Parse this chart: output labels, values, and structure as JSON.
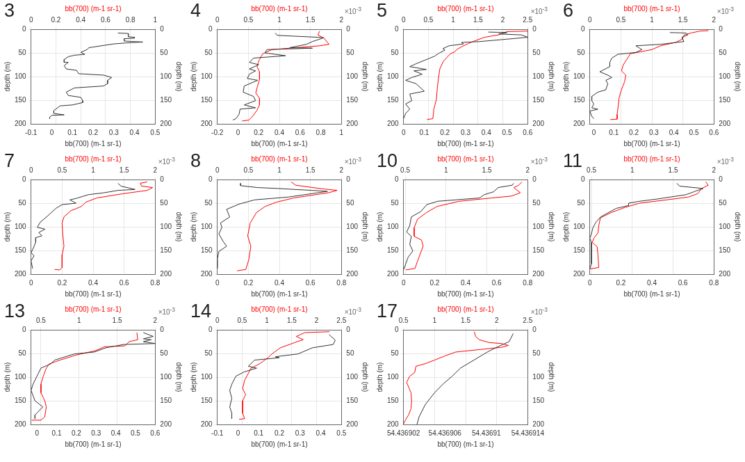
{
  "chart_data": [
    {
      "type": "line",
      "title": "3",
      "xlabel": "bb(700) (m-1 sr-1)",
      "x2label": "bb(700) (m-1 sr-1)",
      "ylabel": "depth (m)",
      "y2label": "depth (m)",
      "xlim": [
        -0.1,
        0.5
      ],
      "xticks": [
        -0.1,
        0,
        0.1,
        0.2,
        0.3,
        0.4,
        0.5
      ],
      "x2lim": [
        0,
        1
      ],
      "x2ticks": [
        0,
        0.2,
        0.4,
        0.6,
        0.8,
        1
      ],
      "ylim": [
        200,
        0
      ],
      "yticks": [
        0,
        50,
        100,
        150,
        200
      ],
      "y2lim": [
        200,
        0
      ],
      "y2ticks": [
        0,
        50,
        100,
        150,
        200
      ],
      "grid": true,
      "series": [
        {
          "color": "#333333",
          "x": [
            0.32,
            0.37,
            0.37,
            0.4,
            0.4,
            0.35,
            0.35,
            0.44,
            0.36,
            0.3,
            0.18,
            0.17,
            0.14,
            0.16,
            0.11,
            0.08,
            0.06,
            0.06,
            0.08,
            0.06,
            0.07,
            0.12,
            0.13,
            0.25,
            0.29,
            0.27,
            0.27,
            0.25,
            0.11,
            0.07,
            0.08,
            0.14,
            0.15,
            0.15,
            0.1,
            0.04,
            0.01,
            0.01,
            0.06,
            0.0,
            -0.01,
            -0.01
          ],
          "values": [
            8,
            9,
            16,
            17,
            19,
            20,
            25,
            27,
            29,
            31,
            39,
            43,
            49,
            53,
            55,
            58,
            64,
            70,
            70,
            77,
            84,
            87,
            94,
            97,
            102,
            108,
            115,
            120,
            124,
            133,
            140,
            144,
            151,
            155,
            160,
            162,
            172,
            178,
            181,
            182,
            186,
            189
          ]
        }
      ]
    },
    {
      "type": "line",
      "title": "4",
      "xlabel": "bb(700) (m-1 sr-1)",
      "x2label": "bb(700) (m-1 sr-1)",
      "ylabel": "depth (m)",
      "y2label": "depth (m)",
      "xlim": [
        -0.2,
        1
      ],
      "xticks": [
        -0.2,
        0,
        0.2,
        0.4,
        0.6,
        0.8,
        1
      ],
      "x2lim": [
        0,
        2
      ],
      "x2ticks": [
        0,
        0.5,
        1,
        1.5,
        2
      ],
      "ylim": [
        200,
        0
      ],
      "yticks": [
        0,
        50,
        100,
        150,
        200
      ],
      "y2lim": [
        200,
        0
      ],
      "y2ticks": [
        0,
        50,
        100,
        150,
        200
      ],
      "grid": true,
      "annotations": [
        "×10$^{-3}$"
      ],
      "series": [
        {
          "color": "#333333",
          "x": [
            0.36,
            0.38,
            0.77,
            0.83,
            0.72,
            0.66,
            0.5,
            0.72,
            0.28,
            0.26,
            0.46,
            0.15,
            0.11,
            0.2,
            0.11,
            0.17,
            0.11,
            0.09,
            0.19,
            0.06,
            0.05,
            0.15,
            0.17,
            0.06,
            0.17,
            0.02,
            0.01,
            -0.02,
            -0.05
          ],
          "values": [
            8,
            13,
            17,
            18,
            26,
            32,
            39,
            40,
            43,
            50,
            56,
            61,
            70,
            75,
            84,
            88,
            95,
            104,
            108,
            120,
            133,
            142,
            151,
            160,
            166,
            169,
            180,
            189,
            192
          ]
        },
        {
          "color": "#ff0000",
          "axis": "x2",
          "x": [
            1.65,
            1.62,
            1.72,
            1.8,
            1.65,
            1.36,
            1.17,
            0.88,
            0.73,
            0.68,
            0.66,
            0.64,
            0.68,
            0.68,
            0.64,
            0.62,
            0.68,
            0.68,
            0.64,
            0.57,
            0.51,
            0.4
          ],
          "values": [
            4,
            12,
            19,
            32,
            35,
            38,
            40,
            43,
            52,
            64,
            70,
            79,
            90,
            106,
            124,
            135,
            146,
            160,
            171,
            184,
            192,
            194
          ]
        }
      ]
    },
    {
      "type": "line",
      "title": "5",
      "xlabel": "bb(700) (m-1 sr-1)",
      "x2label": "bb(700) (m-1 sr-1)",
      "ylabel": "depth (m)",
      "y2label": "depth (m)",
      "xlim": [
        0,
        0.6
      ],
      "xticks": [
        0,
        0.1,
        0.2,
        0.3,
        0.4,
        0.5,
        0.6
      ],
      "x2lim": [
        0,
        2.5
      ],
      "x2ticks": [
        0,
        0.5,
        1,
        1.5,
        2,
        2.5
      ],
      "ylim": [
        200,
        0
      ],
      "yticks": [
        0,
        50,
        100,
        150,
        200
      ],
      "y2lim": [
        200,
        0
      ],
      "y2ticks": [
        0,
        50,
        100,
        150,
        200
      ],
      "grid": true,
      "annotations": [
        "×10$^{-3}$"
      ],
      "series": [
        {
          "color": "#333333",
          "x": [
            0.41,
            0.5,
            0.46,
            0.57,
            0.6,
            0.5,
            0.37,
            0.28,
            0.29,
            0.22,
            0.19,
            0.2,
            0.17,
            0.15,
            0.1,
            0.06,
            0.03,
            0.11,
            0.05,
            0.09,
            0.04,
            0.01,
            0.06,
            0.1,
            0.03,
            0.04,
            0.01,
            0.03,
            0.01,
            0.0
          ],
          "values": [
            6,
            7,
            10,
            12,
            17,
            21,
            26,
            28,
            31,
            35,
            41,
            44,
            51,
            57,
            66,
            73,
            79,
            85,
            88,
            95,
            102,
            108,
            115,
            131,
            137,
            151,
            158,
            169,
            178,
            189
          ]
        },
        {
          "color": "#ff0000",
          "axis": "x2",
          "x": [
            2.5,
            2.09,
            1.91,
            1.63,
            1.4,
            1.31,
            1.17,
            1.07,
            1.03,
            0.94,
            0.8,
            0.73,
            0.7,
            0.68,
            0.66,
            0.61,
            0.59,
            0.47
          ],
          "values": [
            4,
            5,
            12,
            17,
            26,
            30,
            37,
            43,
            48,
            52,
            68,
            84,
            106,
            124,
            149,
            169,
            189,
            191
          ]
        }
      ]
    },
    {
      "type": "line",
      "title": "6",
      "xlabel": "bb(700) (m-1 sr-1)",
      "x2label": "bb(700) (m-1 sr-1)",
      "ylabel": "depth (m)",
      "y2label": "depth (m)",
      "xlim": [
        -0.02,
        0.6
      ],
      "xticks": [
        0,
        0.1,
        0.2,
        0.3,
        0.4,
        0.5,
        0.6
      ],
      "x2lim": [
        0,
        2
      ],
      "x2ticks": [
        0,
        0.5,
        1,
        1.5,
        2
      ],
      "ylim": [
        200,
        0
      ],
      "yticks": [
        0,
        50,
        100,
        150,
        200
      ],
      "y2lim": [
        200,
        0
      ],
      "y2ticks": [
        0,
        50,
        100,
        150,
        200
      ],
      "grid": true,
      "annotations": [
        "×10$^{-3}$"
      ],
      "series": [
        {
          "color": "#333333",
          "x": [
            0.38,
            0.46,
            0.47,
            0.44,
            0.45,
            0.33,
            0.21,
            0.24,
            0.21,
            0.12,
            0.09,
            0.08,
            0.08,
            0.03,
            0.07,
            0.09,
            0.06,
            0.07,
            0.06,
            0.02,
            -0.01,
            -0.01,
            0.0,
            -0.01,
            0.02,
            -0.02,
            -0.01,
            0.0
          ],
          "values": [
            7,
            8,
            12,
            17,
            26,
            32,
            35,
            43,
            49,
            53,
            61,
            70,
            79,
            90,
            97,
            102,
            108,
            115,
            128,
            133,
            142,
            151,
            158,
            166,
            169,
            173,
            184,
            189
          ]
        },
        {
          "color": "#ff0000",
          "axis": "x2",
          "x": [
            1.91,
            1.77,
            1.63,
            1.52,
            1.49,
            1.38,
            1.14,
            1.0,
            0.65,
            0.61,
            0.54,
            0.51,
            0.58,
            0.56,
            0.51,
            0.47,
            0.46,
            0.44,
            0.44,
            0.33
          ],
          "values": [
            3,
            4,
            8,
            12,
            21,
            28,
            35,
            43,
            52,
            61,
            75,
            88,
            97,
            111,
            128,
            146,
            160,
            180,
            190,
            191
          ]
        }
      ]
    },
    {
      "type": "line",
      "title": "7",
      "xlabel": "bb(700) (m-1 sr-1)",
      "x2label": "bb(700) (m-1 sr-1)",
      "ylabel": "depth (m)",
      "y2label": "depth (m)",
      "xlim": [
        0,
        0.8
      ],
      "xticks": [
        0,
        0.2,
        0.4,
        0.6,
        0.8
      ],
      "x2lim": [
        0,
        2
      ],
      "x2ticks": [
        0,
        0.5,
        1,
        1.5,
        2
      ],
      "ylim": [
        200,
        0
      ],
      "yticks": [
        0,
        50,
        100,
        150,
        200
      ],
      "y2lim": [
        200,
        0
      ],
      "y2ticks": [
        0,
        50,
        100,
        150,
        200
      ],
      "grid": true,
      "annotations": [
        "×10$^{-3}$"
      ],
      "series": [
        {
          "color": "#333333",
          "x": [
            0.56,
            0.58,
            0.67,
            0.56,
            0.47,
            0.37,
            0.29,
            0.25,
            0.29,
            0.2,
            0.16,
            0.13,
            0.1,
            0.06,
            0.04,
            0.09,
            0.05,
            0.07,
            0.03,
            0.03,
            0.02,
            0.0,
            0.02,
            0.0,
            0.01
          ],
          "values": [
            8,
            14,
            21,
            23,
            28,
            32,
            40,
            43,
            50,
            53,
            61,
            70,
            79,
            90,
            101,
            105,
            112,
            119,
            123,
            132,
            141,
            155,
            161,
            172,
            188
          ]
        },
        {
          "color": "#ff0000",
          "axis": "x2",
          "x": [
            1.87,
            1.76,
            1.78,
            1.96,
            1.87,
            1.48,
            1.06,
            0.88,
            0.81,
            0.64,
            0.53,
            0.5,
            0.51,
            0.53,
            0.5,
            0.5,
            0.46,
            0.38
          ],
          "values": [
            5,
            8,
            14,
            17,
            23,
            30,
            39,
            48,
            57,
            66,
            79,
            92,
            115,
            141,
            159,
            186,
            191,
            190
          ]
        }
      ]
    },
    {
      "type": "line",
      "title": "8",
      "xlabel": "bb(700) (m-1 sr-1)",
      "x2label": "bb(700) (m-1 sr-1)",
      "ylabel": "depth (m)",
      "y2label": "depth (m)",
      "xlim": [
        0,
        0.8
      ],
      "xticks": [
        0,
        0.2,
        0.4,
        0.6,
        0.8
      ],
      "x2lim": [
        0,
        2
      ],
      "x2ticks": [
        0,
        0.5,
        1,
        1.5,
        2
      ],
      "ylim": [
        200,
        0
      ],
      "yticks": [
        0,
        50,
        100,
        150,
        200
      ],
      "y2lim": [
        200,
        0
      ],
      "y2ticks": [
        0,
        50,
        100,
        150,
        200
      ],
      "grid": true,
      "annotations": [
        "×10$^{-3}$"
      ],
      "series": [
        {
          "color": "#333333",
          "x": [
            0.15,
            0.15,
            0.26,
            0.39,
            0.61,
            0.71,
            0.46,
            0.24,
            0.14,
            0.06,
            0.08,
            0.02,
            0.03,
            0.01,
            0.04,
            0.06,
            0.01,
            0.0,
            0.0
          ],
          "values": [
            8,
            13,
            17,
            19,
            23,
            25,
            37,
            43,
            52,
            63,
            79,
            92,
            101,
            115,
            132,
            141,
            152,
            169,
            188
          ]
        },
        {
          "color": "#ff0000",
          "axis": "x2",
          "x": [
            1.19,
            1.26,
            1.65,
            1.93,
            1.79,
            1.23,
            0.95,
            0.77,
            0.63,
            0.53,
            0.49,
            0.54,
            0.51,
            0.46,
            0.32
          ],
          "values": [
            5,
            12,
            19,
            23,
            28,
            39,
            48,
            57,
            70,
            92,
            119,
            141,
            168,
            190,
            193
          ]
        }
      ]
    },
    {
      "type": "line",
      "title": "10",
      "xlabel": "bb(700) (m-1 sr-1)",
      "x2label": "bb(700) (m-1 sr-1)",
      "ylabel": "depth (m)",
      "y2label": "depth (m)",
      "xlim": [
        0,
        0.8
      ],
      "xticks": [
        0,
        0.2,
        0.4,
        0.6,
        0.8
      ],
      "x2lim": [
        0.48,
        2
      ],
      "x2ticks": [
        0.5,
        1,
        1.5,
        2
      ],
      "ylim": [
        200,
        0
      ],
      "yticks": [
        0,
        50,
        100,
        150,
        200
      ],
      "y2lim": [
        200,
        0
      ],
      "y2ticks": [
        0,
        50,
        100,
        150,
        200
      ],
      "grid": true,
      "annotations": [
        "×10$^{-3}$"
      ],
      "series": [
        {
          "color": "#333333",
          "x": [
            0.71,
            0.7,
            0.61,
            0.58,
            0.52,
            0.49,
            0.22,
            0.15,
            0.11,
            0.05,
            0.04,
            0.02,
            0.05,
            0.04,
            0.06,
            0.03,
            0.01,
            0.0
          ],
          "values": [
            8,
            12,
            17,
            26,
            32,
            39,
            46,
            53,
            68,
            79,
            97,
            111,
            120,
            137,
            151,
            164,
            182,
            191
          ]
        },
        {
          "color": "#ff0000",
          "axis": "x2",
          "x": [
            1.93,
            1.89,
            1.83,
            1.91,
            1.8,
            1.56,
            1.16,
            0.89,
            0.76,
            0.65,
            0.61,
            0.61,
            0.7,
            0.72,
            0.7,
            0.65,
            0.62,
            0.51
          ],
          "values": [
            5,
            12,
            17,
            28,
            35,
            39,
            46,
            57,
            70,
            84,
            102,
            120,
            128,
            141,
            150,
            173,
            188,
            191
          ]
        }
      ]
    },
    {
      "type": "line",
      "title": "11",
      "xlabel": "bb(700) (m-1 sr-1)",
      "x2label": "bb(700) (m-1 sr-1)",
      "ylabel": "depth (m)",
      "y2label": "depth (m)",
      "xlim": [
        0,
        0.8
      ],
      "xticks": [
        0,
        0.2,
        0.4,
        0.6,
        0.8
      ],
      "x2lim": [
        0.48,
        2
      ],
      "x2ticks": [
        0.5,
        1,
        1.5,
        2
      ],
      "ylim": [
        200,
        0
      ],
      "yticks": [
        0,
        50,
        100,
        150,
        200
      ],
      "y2lim": [
        200,
        0
      ],
      "y2ticks": [
        0,
        50,
        100,
        150,
        200
      ],
      "grid": true,
      "annotations": [
        "×10$^{-3}$"
      ],
      "series": [
        {
          "color": "#333333",
          "x": [
            0.56,
            0.58,
            0.73,
            0.67,
            0.62,
            0.44,
            0.32,
            0.25,
            0.25,
            0.17,
            0.07,
            0.04,
            0.02,
            0.01,
            0.0,
            0.01,
            0.01,
            0.01,
            0.01,
            0.0
          ],
          "values": [
            8,
            14,
            19,
            26,
            32,
            41,
            46,
            50,
            55,
            61,
            79,
            90,
            102,
            115,
            124,
            133,
            146,
            164,
            178,
            189
          ]
        },
        {
          "color": "#ff0000",
          "axis": "x2",
          "x": [
            1.9,
            1.93,
            1.85,
            1.8,
            1.69,
            1.42,
            1.09,
            0.91,
            0.74,
            0.61,
            0.59,
            0.58,
            0.53,
            0.51,
            0.57,
            0.58,
            0.59,
            0.48
          ],
          "values": [
            5,
            12,
            19,
            30,
            37,
            43,
            50,
            59,
            70,
            81,
            97,
            113,
            124,
            133,
            142,
            160,
            186,
            189
          ]
        }
      ]
    },
    {
      "type": "line",
      "title": "13",
      "xlabel": "bb(700) (m-1 sr-1)",
      "x2label": "bb(700) (m-1 sr-1)",
      "ylabel": "depth (m)",
      "y2label": "depth (m)",
      "xlim": [
        -0.03,
        0.6
      ],
      "xticks": [
        0,
        0.1,
        0.2,
        0.3,
        0.4,
        0.5,
        0.6
      ],
      "x2lim": [
        0.37,
        2
      ],
      "x2ticks": [
        0.5,
        1,
        1.5,
        2
      ],
      "ylim": [
        200,
        0
      ],
      "yticks": [
        0,
        50,
        100,
        150,
        200
      ],
      "y2lim": [
        200,
        0
      ],
      "y2ticks": [
        0,
        50,
        100,
        150,
        200
      ],
      "grid": true,
      "annotations": [
        "×10$^{-3}$"
      ],
      "series": [
        {
          "color": "#333333",
          "x": [
            0.54,
            0.59,
            0.54,
            0.58,
            0.54,
            0.6,
            0.44,
            0.35,
            0.29,
            0.19,
            0.09,
            0.07,
            0.02,
            0.0,
            -0.02,
            -0.03,
            -0.01,
            0.03,
            -0.01,
            -0.01
          ],
          "values": [
            6,
            14,
            19,
            21,
            25,
            29,
            31,
            38,
            47,
            51,
            64,
            72,
            81,
            98,
            115,
            128,
            150,
            163,
            180,
            188
          ]
        },
        {
          "color": "#ff0000",
          "axis": "x2",
          "x": [
            1.76,
            1.77,
            1.66,
            1.6,
            1.33,
            1.22,
            0.97,
            0.75,
            0.61,
            0.57,
            0.53,
            0.5,
            0.5,
            0.55,
            0.57,
            0.55,
            0.5,
            0.38
          ],
          "values": [
            6,
            21,
            25,
            34,
            36,
            44,
            53,
            64,
            72,
            81,
            98,
            115,
            133,
            150,
            163,
            184,
            191,
            191
          ]
        }
      ]
    },
    {
      "type": "line",
      "title": "14",
      "xlabel": "bb(700) (m-1 sr-1)",
      "x2label": "bb(700) (m-1 sr-1)",
      "ylabel": "depth (m)",
      "y2label": "depth (m)",
      "xlim": [
        -0.1,
        0.5
      ],
      "xticks": [
        -0.1,
        0,
        0.1,
        0.2,
        0.3,
        0.4,
        0.5
      ],
      "x2lim": [
        0,
        2.5
      ],
      "x2ticks": [
        0,
        0.5,
        1,
        1.5,
        2,
        2.5
      ],
      "ylim": [
        200,
        0
      ],
      "yticks": [
        0,
        50,
        100,
        150,
        200
      ],
      "y2lim": [
        200,
        0
      ],
      "y2ticks": [
        0,
        50,
        100,
        150,
        200
      ],
      "grid": true,
      "annotations": [
        "×10$^{-3}$"
      ],
      "series": [
        {
          "color": "#333333",
          "x": [
            0.44,
            0.45,
            0.47,
            0.46,
            0.36,
            0.29,
            0.18,
            0.2,
            0.08,
            0.05,
            0.09,
            0.03,
            -0.01,
            -0.03,
            -0.04,
            -0.03,
            -0.04,
            -0.03,
            -0.03
          ],
          "values": [
            10,
            14,
            22,
            31,
            38,
            51,
            57,
            59,
            64,
            77,
            81,
            89,
            98,
            115,
            128,
            145,
            163,
            176,
            188
          ]
        },
        {
          "color": "#ff0000",
          "axis": "x2",
          "x": [
            2.26,
            1.76,
            1.59,
            1.73,
            1.61,
            1.27,
            1.1,
            1.02,
            0.85,
            0.68,
            0.55,
            0.51,
            0.57,
            0.51,
            0.51,
            0.55,
            0.44
          ],
          "values": [
            4,
            6,
            14,
            21,
            25,
            38,
            51,
            59,
            72,
            81,
            107,
            124,
            137,
            150,
            176,
            188,
            189
          ]
        }
      ]
    },
    {
      "type": "line",
      "title": "17",
      "xlabel": "bb(700) (m-1 sr-1)",
      "x2label": "bb(700) (m-1 sr-1)",
      "ylabel": "depth (m)",
      "y2label": "depth (m)",
      "xlim": [
        54.436902,
        54.436914
      ],
      "xticks": [
        54.436902,
        54.436906,
        54.43691,
        54.436914
      ],
      "x2lim": [
        0.5,
        2.5
      ],
      "x2ticks": [
        0.5,
        1,
        1.5,
        2,
        2.5
      ],
      "ylim": [
        200,
        0
      ],
      "yticks": [
        0,
        50,
        100,
        150,
        200
      ],
      "y2lim": [
        200,
        0
      ],
      "y2ticks": [
        0,
        50,
        100,
        150,
        200
      ],
      "grid": true,
      "annotations": [
        "×10$^{-3}$"
      ],
      "series": [
        {
          "color": "#333333",
          "x": [
            54.4369126,
            54.4369122,
            54.4369109,
            54.4369101,
            54.4369088,
            54.4369075,
            54.4369067,
            54.4369058,
            54.436905,
            54.4369041,
            54.4369035,
            54.4369033
          ],
          "values": [
            8,
            25,
            38,
            47,
            64,
            81,
            98,
            115,
            133,
            158,
            184,
            200
          ]
        },
        {
          "color": "#ff0000",
          "axis": "x2",
          "x": [
            1.64,
            1.66,
            1.72,
            1.88,
            2.08,
            2.19,
            2.08,
            1.71,
            1.34,
            1.17,
            1.0,
            0.84,
            0.7,
            0.68,
            0.6,
            0.55,
            0.62,
            0.63,
            0.62,
            0.58,
            0.52,
            0.5
          ],
          "values": [
            4,
            14,
            21,
            27,
            29,
            33,
            37,
            42,
            47,
            55,
            64,
            72,
            77,
            90,
            98,
            111,
            133,
            150,
            167,
            180,
            193,
            199
          ]
        }
      ]
    }
  ]
}
